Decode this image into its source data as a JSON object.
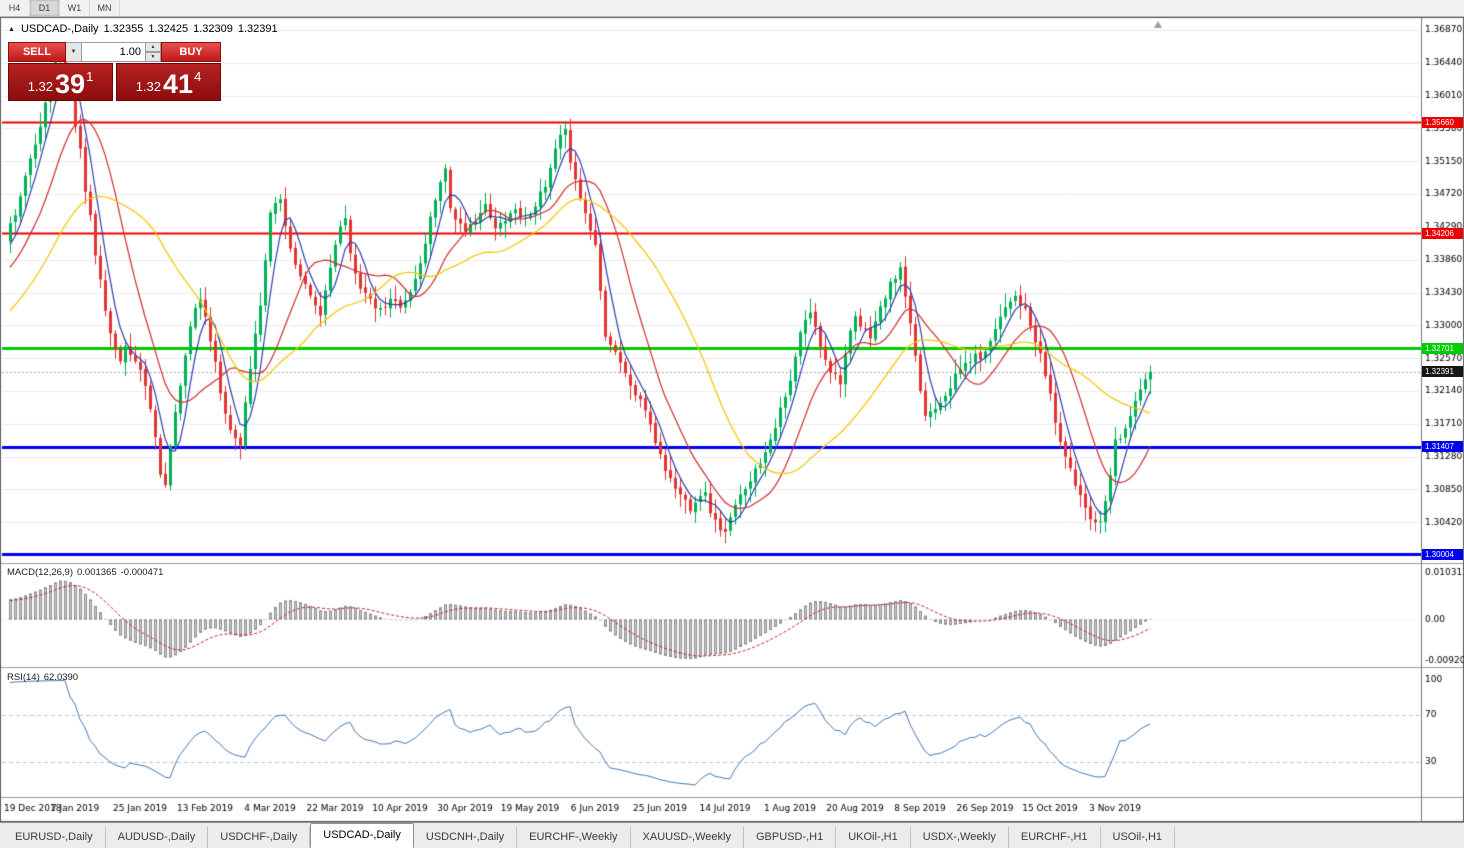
{
  "toolbar": {
    "timeframes": [
      {
        "label": "H4",
        "active": false
      },
      {
        "label": "D1",
        "active": true
      },
      {
        "label": "W1",
        "active": false
      },
      {
        "label": "MN",
        "active": false
      }
    ]
  },
  "icons": {
    "chart_arrow": "▲",
    "chevron_down": "▼",
    "spinner_up": "▲",
    "spinner_down": "▼",
    "end_marker": "▲"
  },
  "chart": {
    "title": "USDCAD-,Daily",
    "ohlc": {
      "open": "1.32355",
      "high": "1.32425",
      "low": "1.32309",
      "close": "1.32391"
    },
    "trade_panel": {
      "sell_label": "SELL",
      "buy_label": "BUY",
      "volume": "1.00",
      "bid": {
        "small": "1.32",
        "big": "39",
        "sup": "1"
      },
      "ask": {
        "small": "1.32",
        "big": "41",
        "sup": "4"
      }
    }
  },
  "indicators": {
    "macd": {
      "label": "MACD(12,26,9)",
      "value_main": "0.001365",
      "value_signal": "-0.000471",
      "axis_max": "0.010311",
      "axis_zero": "0.00",
      "axis_min": "-0.009203"
    },
    "rsi": {
      "label": "RSI(14)",
      "value": "62.0390",
      "axis": [
        "100",
        "70",
        "30"
      ],
      "levels": [
        70,
        30
      ]
    }
  },
  "tabs": [
    {
      "label": "EURUSD-,Daily",
      "active": false
    },
    {
      "label": "AUDUSD-,Daily",
      "active": false
    },
    {
      "label": "USDCHF-,Daily",
      "active": false
    },
    {
      "label": "USDCAD-,Daily",
      "active": true
    },
    {
      "label": "USDCNH-,Daily",
      "active": false
    },
    {
      "label": "EURCHF-,Weekly",
      "active": false
    },
    {
      "label": "XAUUSD-,Weekly",
      "active": false
    },
    {
      "label": "GBPUSD-,H1",
      "active": false
    },
    {
      "label": "UKOil-,H1",
      "active": false
    },
    {
      "label": "USDX-,Weekly",
      "active": false
    },
    {
      "label": "EURCHF-,H1",
      "active": false
    },
    {
      "label": "USOil-,H1",
      "active": false
    }
  ],
  "chart_data": {
    "type": "candlestick",
    "symbol": "USDCAD-",
    "timeframe": "Daily",
    "ylim": [
      1.299,
      1.37
    ],
    "price_ticks": [
      "1.36870",
      "1.36440",
      "1.36010",
      "1.35580",
      "1.35150",
      "1.34720",
      "1.34290",
      "1.33860",
      "1.33430",
      "1.33000",
      "1.32570",
      "1.32140",
      "1.31710",
      "1.31280",
      "1.30850",
      "1.30420"
    ],
    "date_labels": [
      "19 Dec 2018",
      "7 Jan 2019",
      "25 Jan 2019",
      "13 Feb 2019",
      "4 Mar 2019",
      "22 Mar 2019",
      "10 Apr 2019",
      "30 Apr 2019",
      "19 May 2019",
      "6 Jun 2019",
      "25 Jun 2019",
      "14 Jul 2019",
      "1 Aug 2019",
      "20 Aug 2019",
      "8 Sep 2019",
      "26 Sep 2019",
      "15 Oct 2019",
      "3 Nov 2019"
    ],
    "bars_per_label": 13,
    "closes": [
      1.343,
      1.3448,
      1.3465,
      1.3492,
      1.352,
      1.3542,
      1.3565,
      1.3588,
      1.361,
      1.3648,
      1.3655,
      1.362,
      1.36,
      1.3565,
      1.353,
      1.348,
      1.3445,
      1.339,
      1.3355,
      1.332,
      1.329,
      1.327,
      1.3258,
      1.327,
      1.3262,
      1.325,
      1.3244,
      1.322,
      1.3192,
      1.315,
      1.3108,
      1.3095,
      1.314,
      1.3185,
      1.3225,
      1.3262,
      1.33,
      1.3318,
      1.333,
      1.331,
      1.328,
      1.3248,
      1.321,
      1.3185,
      1.3165,
      1.3152,
      1.3148,
      1.3195,
      1.3245,
      1.329,
      1.333,
      1.339,
      1.3445,
      1.346,
      1.3465,
      1.3435,
      1.34,
      1.3378,
      1.336,
      1.3349,
      1.3338,
      1.3325,
      1.3312,
      1.3346,
      1.338,
      1.3404,
      1.3428,
      1.3435,
      1.3392,
      1.3372,
      1.3352,
      1.3341,
      1.333,
      1.3324,
      1.3318,
      1.3325,
      1.3332,
      1.333,
      1.3328,
      1.3335,
      1.3342,
      1.3361,
      1.338,
      1.341,
      1.344,
      1.3466,
      1.3492,
      1.3505,
      1.3455,
      1.3442,
      1.343,
      1.3418,
      1.343,
      1.3442,
      1.3448,
      1.3455,
      1.344,
      1.3425,
      1.3433,
      1.3442,
      1.3447,
      1.3452,
      1.3445,
      1.3438,
      1.3449,
      1.346,
      1.347,
      1.348,
      1.3504,
      1.3528,
      1.3545,
      1.3552,
      1.3518,
      1.3495,
      1.3465,
      1.3448,
      1.3425,
      1.3405,
      1.335,
      1.329,
      1.3275,
      1.3268,
      1.3252,
      1.3235,
      1.3222,
      1.321,
      1.3202,
      1.319,
      1.3165,
      1.3148,
      1.3132,
      1.3112,
      1.3098,
      1.3088,
      1.3078,
      1.307,
      1.3062,
      1.3072,
      1.308,
      1.3078,
      1.3058,
      1.3042,
      1.3035,
      1.3028,
      1.3045,
      1.3062,
      1.3075,
      1.309,
      1.31,
      1.311,
      1.3122,
      1.3138,
      1.3152,
      1.317,
      1.3188,
      1.3205,
      1.3225,
      1.3258,
      1.3288,
      1.3305,
      1.3318,
      1.3295,
      1.3275,
      1.3258,
      1.3242,
      1.3235,
      1.3228,
      1.3262,
      1.3288,
      1.3308,
      1.3298,
      1.3292,
      1.3288,
      1.3305,
      1.3322,
      1.3338,
      1.3352,
      1.3365,
      1.3372,
      1.3338,
      1.3298,
      1.3255,
      1.3215,
      1.3182,
      1.3188,
      1.3195,
      1.3202,
      1.3212,
      1.3222,
      1.3232,
      1.3242,
      1.325,
      1.3255,
      1.3258,
      1.326,
      1.3262,
      1.3282,
      1.33,
      1.3312,
      1.3325,
      1.3335,
      1.334,
      1.333,
      1.3318,
      1.3298,
      1.3278,
      1.3258,
      1.3235,
      1.321,
      1.3172,
      1.315,
      1.3128,
      1.3108,
      1.3092,
      1.3078,
      1.3062,
      1.305,
      1.3045,
      1.3042,
      1.3075,
      1.3108,
      1.3148,
      1.3155,
      1.3168,
      1.3182,
      1.3198,
      1.3215,
      1.3228,
      1.32391
    ],
    "prehistory": {
      "bars": 40,
      "from": 1.315,
      "to": 1.3408
    },
    "noise_seed": 11,
    "moving_averages": [
      {
        "period": 5,
        "color": "#2f3fae"
      },
      {
        "period": 13,
        "color": "#cf2e2e"
      },
      {
        "period": 30,
        "color": "#f5c400"
      }
    ],
    "levels": [
      {
        "price": 1.3566,
        "label": "1.35660",
        "color": "#ee0000",
        "width": 2
      },
      {
        "price": 1.34206,
        "label": "1.34206",
        "color": "#ee0000",
        "width": 2
      },
      {
        "price": 1.32701,
        "label": "1.32701",
        "color": "#00cc00",
        "width": 3
      },
      {
        "price": 1.31407,
        "label": "1.31407",
        "color": "#0000ee",
        "width": 3
      },
      {
        "price": 1.30004,
        "label": "1.30004",
        "color": "#0000ee",
        "width": 3
      }
    ],
    "current_price": {
      "value": 1.32391,
      "label": "1.32391"
    },
    "macd": {
      "vmax": 0.0113,
      "vmin": -0.0101
    },
    "colors": {
      "up": "#00b158",
      "down": "#e23434",
      "grid": "#ededed",
      "bid_line": "#a8a8a8",
      "macd_hist_fill": "#cdcdcd",
      "macd_hist_stroke": "#8f8f8f",
      "macd_signal": "#c62828",
      "rsi_line": "#4a7ab5",
      "rsi_levels": "#bcc6da"
    }
  }
}
